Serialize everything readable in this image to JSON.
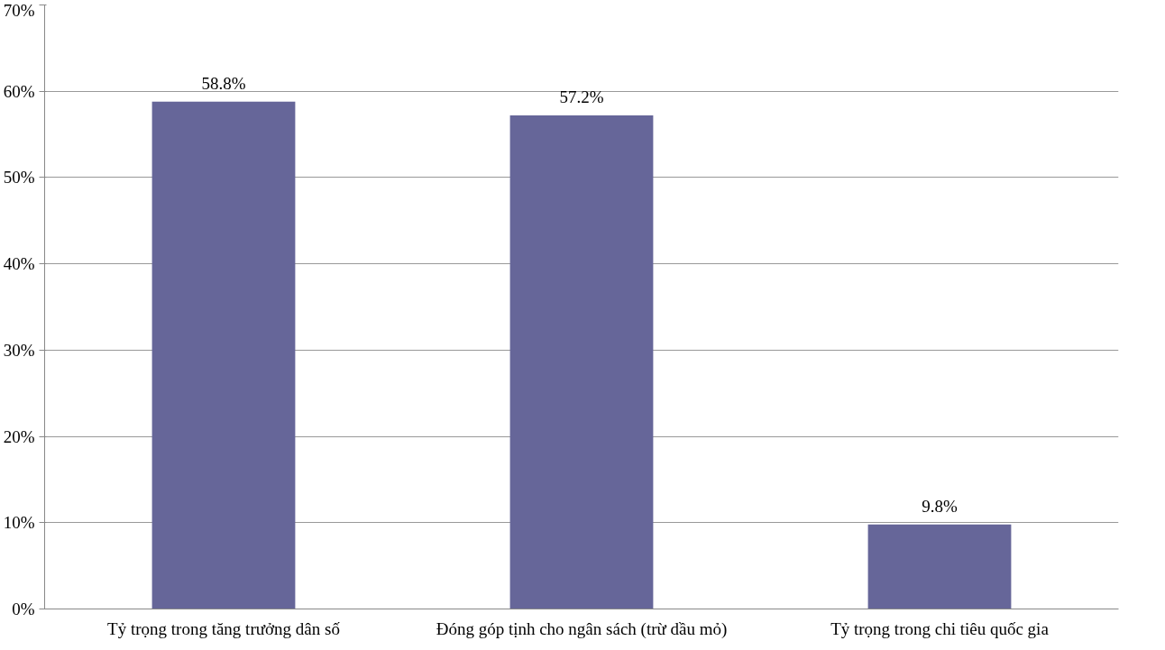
{
  "chart_data": {
    "type": "bar",
    "categories": [
      "Tỷ trọng trong tăng trưởng dân số",
      "Đóng góp tịnh cho ngân sách (trừ dầu mỏ)",
      "Tỷ trọng trong chi tiêu quốc gia"
    ],
    "values": [
      58.8,
      57.2,
      9.8
    ],
    "value_labels": [
      "58.8%",
      "57.2%",
      "9.8%"
    ],
    "color": "#666699",
    "ylim": [
      0,
      70
    ],
    "yticks": [
      {
        "value": 0,
        "label": "0%"
      },
      {
        "value": 10,
        "label": "10%"
      },
      {
        "value": 20,
        "label": "20%"
      },
      {
        "value": 30,
        "label": "30%"
      },
      {
        "value": 40,
        "label": "40%"
      },
      {
        "value": 50,
        "label": "50%"
      },
      {
        "value": 60,
        "label": "60%"
      },
      {
        "value": 70,
        "label": "70%"
      }
    ],
    "grid": "y"
  }
}
